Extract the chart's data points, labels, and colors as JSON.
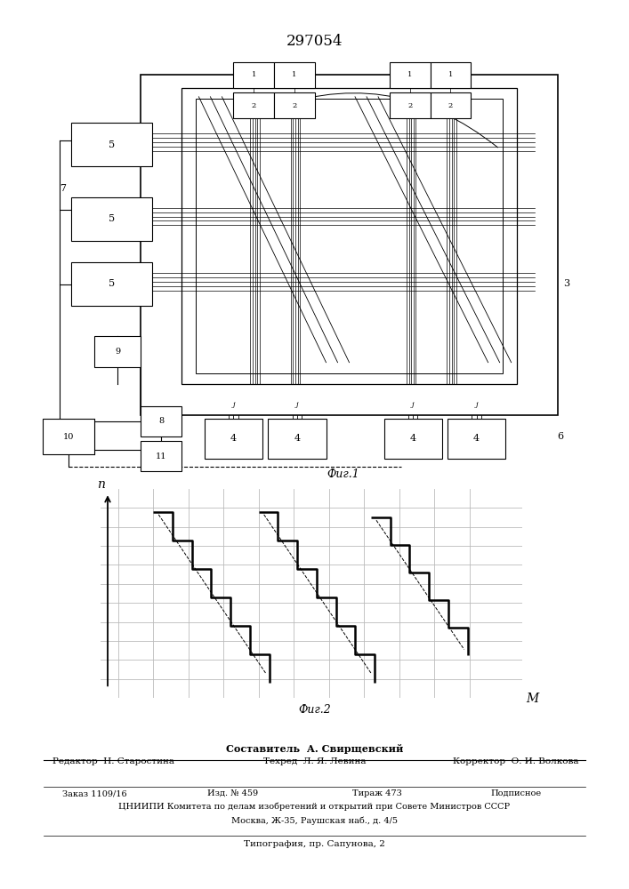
{
  "title": "297054",
  "fig1_caption_ru": "Фиг.1",
  "fig2_caption_ru": "Фиг.2",
  "footer_line1": "Составитель  А. Свирщевский",
  "footer_line2_left": "Редактор  Н. Старостина",
  "footer_line2_mid": "Техред  Л. Я. Левина",
  "footer_line2_right": "Корректор  О. И. Волкова",
  "footer_line3_1": "Заказ 1109/16",
  "footer_line3_2": "Изд. № 459",
  "footer_line3_3": "Тираж 473",
  "footer_line3_4": "Подписное",
  "footer_line4": "ЦНИИПИ Комитета по делам изобретений и открытий при Совете Министров СССР",
  "footer_line5": "Москва, Ж-35, Раушская наб., д. 4/5",
  "footer_line6": "Типография, пр. Сапунова, 2",
  "bg_color": "#ffffff",
  "lc": "#000000",
  "grid_color": "#aaaaaa"
}
